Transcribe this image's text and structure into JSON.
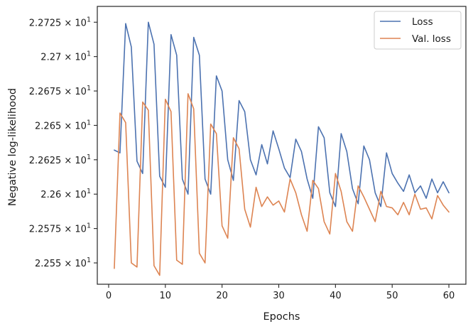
{
  "chart_data": {
    "type": "line",
    "xlabel": "Epochs",
    "ylabel": "Negative log-likelihood",
    "xlim": [
      -2,
      63
    ],
    "ylim": [
      22.5345,
      22.7365
    ],
    "grid": false,
    "legend_position": "top-right",
    "x_ticks": [
      0,
      10,
      20,
      30,
      40,
      50,
      60
    ],
    "y_ticks": [
      {
        "value": 22.55,
        "mantissa": "2.255"
      },
      {
        "value": 22.575,
        "mantissa": "2.2575"
      },
      {
        "value": 22.6,
        "mantissa": "2.26"
      },
      {
        "value": 22.625,
        "mantissa": "2.2625"
      },
      {
        "value": 22.65,
        "mantissa": "2.265"
      },
      {
        "value": 22.675,
        "mantissa": "2.2675"
      },
      {
        "value": 22.7,
        "mantissa": "2.27"
      },
      {
        "value": 22.725,
        "mantissa": "2.2725"
      }
    ],
    "y_tick_multiplier": "× 10",
    "y_tick_exponent": "1",
    "series": [
      {
        "name": "Loss",
        "color": "#4c72b0",
        "x": [
          1,
          2,
          3,
          4,
          5,
          6,
          7,
          8,
          9,
          10,
          11,
          12,
          13,
          14,
          15,
          16,
          17,
          18,
          19,
          20,
          21,
          22,
          23,
          24,
          25,
          26,
          27,
          28,
          29,
          30,
          31,
          32,
          33,
          34,
          35,
          36,
          37,
          38,
          39,
          40,
          41,
          42,
          43,
          44,
          45,
          46,
          47,
          48,
          49,
          50,
          51,
          52,
          53,
          54,
          55,
          56,
          57,
          58,
          59,
          60
        ],
        "values": [
          22.632,
          22.63,
          22.724,
          22.707,
          22.624,
          22.615,
          22.725,
          22.709,
          22.613,
          22.605,
          22.716,
          22.701,
          22.611,
          22.6,
          22.714,
          22.701,
          22.611,
          22.6,
          22.686,
          22.675,
          22.625,
          22.61,
          22.668,
          22.66,
          22.625,
          22.614,
          22.636,
          22.622,
          22.646,
          22.633,
          22.619,
          22.612,
          22.64,
          22.631,
          22.611,
          22.597,
          22.649,
          22.641,
          22.601,
          22.591,
          22.644,
          22.631,
          22.604,
          22.593,
          22.635,
          22.625,
          22.601,
          22.591,
          22.63,
          22.615,
          22.608,
          22.602,
          22.614,
          22.601,
          22.606,
          22.597,
          22.611,
          22.601,
          22.609,
          22.601
        ]
      },
      {
        "name": "Val. loss",
        "color": "#dd8452",
        "x": [
          1,
          2,
          3,
          4,
          5,
          6,
          7,
          8,
          9,
          10,
          11,
          12,
          13,
          14,
          15,
          16,
          17,
          18,
          19,
          20,
          21,
          22,
          23,
          24,
          25,
          26,
          27,
          28,
          29,
          30,
          31,
          32,
          33,
          34,
          35,
          36,
          37,
          38,
          39,
          40,
          41,
          42,
          43,
          44,
          45,
          46,
          47,
          48,
          49,
          50,
          51,
          52,
          53,
          54,
          55,
          56,
          57,
          58,
          59,
          60
        ],
        "values": [
          22.546,
          22.659,
          22.652,
          22.55,
          22.547,
          22.667,
          22.661,
          22.548,
          22.541,
          22.669,
          22.66,
          22.552,
          22.549,
          22.673,
          22.662,
          22.557,
          22.55,
          22.651,
          22.644,
          22.577,
          22.568,
          22.641,
          22.633,
          22.589,
          22.576,
          22.605,
          22.591,
          22.598,
          22.592,
          22.595,
          22.587,
          22.611,
          22.601,
          22.585,
          22.573,
          22.61,
          22.604,
          22.58,
          22.571,
          22.615,
          22.602,
          22.58,
          22.573,
          22.606,
          22.598,
          22.589,
          22.58,
          22.602,
          22.591,
          22.59,
          22.585,
          22.594,
          22.585,
          22.6,
          22.589,
          22.59,
          22.582,
          22.599,
          22.592,
          22.587
        ]
      }
    ]
  }
}
